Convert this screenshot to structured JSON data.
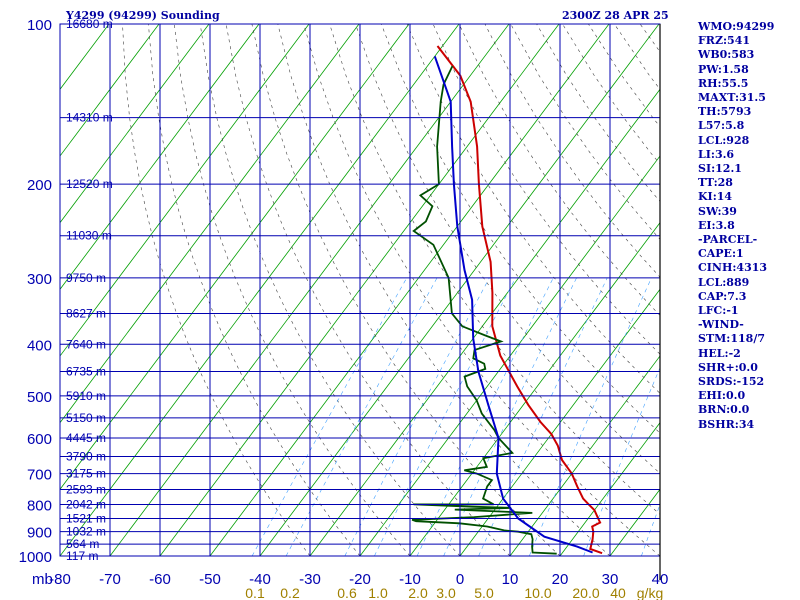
{
  "header": {
    "station": "Y4299 (94299) Sounding",
    "time": "2300Z 28 APR 25"
  },
  "chart_data": {
    "type": "line",
    "title": "Y4299 (94299) Sounding",
    "subtitle": "2300Z 28 APR 25",
    "pressure_levels": [
      100,
      200,
      300,
      400,
      500,
      600,
      700,
      800,
      900,
      1000
    ],
    "pressure_axis_label": "mb",
    "plim": [
      100,
      1000
    ],
    "temperature_ticks": [
      -80,
      -70,
      -60,
      -50,
      -40,
      -30,
      -20,
      -10,
      0,
      10,
      20,
      30,
      40
    ],
    "xlim": [
      -80,
      40
    ],
    "mixing_ratio_labels": [
      "0.1",
      "0.2",
      "0.6",
      "1.0",
      "2.0",
      "3.0",
      "5.0",
      "10.0",
      "20.0",
      "40",
      "g/kg"
    ],
    "height_labels": [
      {
        "text": "16680 m",
        "p": 100
      },
      {
        "text": "14310 m",
        "p": 150
      },
      {
        "text": "12520 m",
        "p": 200
      },
      {
        "text": "11030 m",
        "p": 250
      },
      {
        "text": "9750 m",
        "p": 300
      },
      {
        "text": "8627 m",
        "p": 350
      },
      {
        "text": "7640 m",
        "p": 400
      },
      {
        "text": "6735 m",
        "p": 450
      },
      {
        "text": "5910 m",
        "p": 500
      },
      {
        "text": "5150 m",
        "p": 550
      },
      {
        "text": "4445 m",
        "p": 600
      },
      {
        "text": "3790 m",
        "p": 650
      },
      {
        "text": "3175 m",
        "p": 700
      },
      {
        "text": "2593 m",
        "p": 750
      },
      {
        "text": "2042 m",
        "p": 800
      },
      {
        "text": "1521 m",
        "p": 850
      },
      {
        "text": "1032 m",
        "p": 900
      },
      {
        "text": "564 m",
        "p": 950
      },
      {
        "text": "117 m",
        "p": 1000
      }
    ],
    "series": [
      {
        "color": "#cc0000",
        "points": [
          [
            28,
            988
          ],
          [
            25,
            970
          ],
          [
            24,
            930
          ],
          [
            23,
            900
          ],
          [
            22,
            880
          ],
          [
            23,
            865
          ],
          [
            22,
            850
          ],
          [
            20,
            820
          ],
          [
            18,
            800
          ],
          [
            16,
            780
          ],
          [
            13,
            740
          ],
          [
            10,
            700
          ],
          [
            6,
            660
          ],
          [
            3,
            620
          ],
          [
            0,
            590
          ],
          [
            -4,
            560
          ],
          [
            -9,
            520
          ],
          [
            -14,
            480
          ],
          [
            -22,
            420
          ],
          [
            -28,
            370
          ],
          [
            -33,
            320
          ],
          [
            -38,
            280
          ],
          [
            -45,
            240
          ],
          [
            -52,
            200
          ],
          [
            -58,
            170
          ],
          [
            -66,
            140
          ],
          [
            -72,
            125
          ],
          [
            -81,
            110
          ]
        ]
      },
      {
        "color": "#005000",
        "points": [
          [
            19,
            990
          ],
          [
            14,
            985
          ],
          [
            13,
            960
          ],
          [
            12,
            930
          ],
          [
            11,
            910
          ],
          [
            8,
            900
          ],
          [
            5,
            895
          ],
          [
            1,
            880
          ],
          [
            -5,
            868
          ],
          [
            -14,
            860
          ],
          [
            -15,
            855
          ],
          [
            -3,
            845
          ],
          [
            8,
            830
          ],
          [
            -8,
            818
          ],
          [
            3,
            812
          ],
          [
            -5,
            808
          ],
          [
            -17,
            800
          ],
          [
            -1,
            800
          ],
          [
            -4,
            780
          ],
          [
            -5,
            740
          ],
          [
            -5,
            720
          ],
          [
            -9,
            700
          ],
          [
            -12,
            690
          ],
          [
            -8,
            680
          ],
          [
            -10,
            655
          ],
          [
            -5,
            640
          ],
          [
            -10,
            600
          ],
          [
            -12,
            580
          ],
          [
            -17,
            540
          ],
          [
            -20,
            510
          ],
          [
            -24,
            480
          ],
          [
            -26,
            460
          ],
          [
            -23,
            445
          ],
          [
            -24,
            435
          ],
          [
            -27,
            425
          ],
          [
            -28,
            410
          ],
          [
            -24,
            395
          ],
          [
            -28,
            385
          ],
          [
            -34,
            370
          ],
          [
            -38,
            350
          ],
          [
            -44,
            300
          ],
          [
            -52,
            260
          ],
          [
            -58,
            245
          ],
          [
            -57,
            235
          ],
          [
            -58,
            220
          ],
          [
            -62,
            210
          ],
          [
            -60,
            200
          ],
          [
            -66,
            170
          ],
          [
            -72,
            140
          ],
          [
            -74,
            130
          ],
          [
            -75,
            120
          ]
        ]
      },
      {
        "color": "#0000cc",
        "points": [
          [
            26,
            985
          ],
          [
            22,
            960
          ],
          [
            14,
            920
          ],
          [
            6,
            850
          ],
          [
            0,
            780
          ],
          [
            -5,
            700
          ],
          [
            -10,
            600
          ],
          [
            -17,
            520
          ],
          [
            -24,
            450
          ],
          [
            -30,
            390
          ],
          [
            -36,
            330
          ],
          [
            -42,
            290
          ],
          [
            -50,
            240
          ],
          [
            -57,
            200
          ],
          [
            -63,
            170
          ],
          [
            -70,
            140
          ],
          [
            -80,
            115
          ]
        ]
      }
    ],
    "grid": true
  },
  "indices": [
    "WMO:94299",
    "FRZ:541",
    "WB0:583",
    "PW:1.58",
    "RH:55.5",
    "MAXT:31.5",
    "TH:5793",
    "L57:5.8",
    "LCL:928",
    "LI:3.6",
    "SI:12.1",
    "TT:28",
    "KI:14",
    "SW:39",
    "EI:3.8",
    "-PARCEL-",
    "CAPE:1",
    "CINH:4313",
    "LCL:889",
    "CAP:7.3",
    "LFC:-1",
    "-WIND-",
    "STM:118/7",
    "HEL:-2",
    "SHR+:0.0",
    "SRDS:-152",
    "EHI:0.0",
    "BRN:0.0",
    "BSHR:34"
  ]
}
